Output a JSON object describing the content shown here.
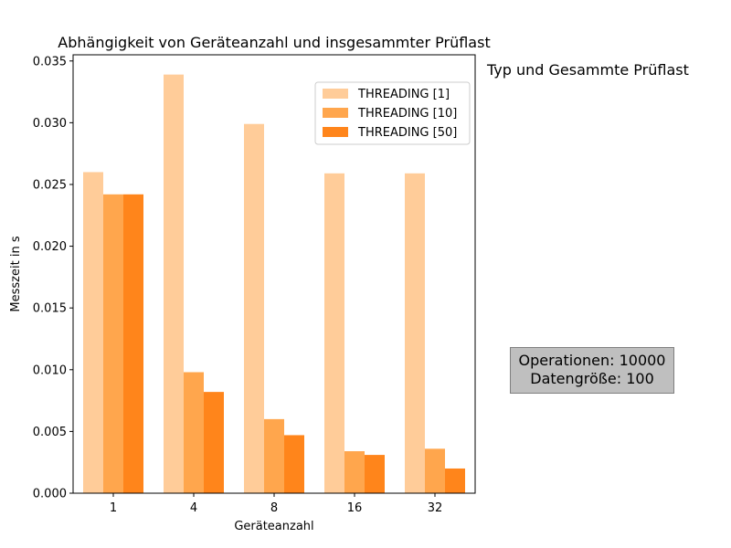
{
  "chart_data": {
    "type": "bar",
    "title": "Abhängigkeit von Geräteanzahl und insgesammter Prüflast",
    "xlabel": "Geräteanzahl",
    "ylabel": "Messzeit in s",
    "categories": [
      "1",
      "4",
      "8",
      "16",
      "32"
    ],
    "ylim": [
      0,
      0.0355
    ],
    "yticks": [
      "0.000",
      "0.005",
      "0.010",
      "0.015",
      "0.020",
      "0.025",
      "0.030",
      "0.035"
    ],
    "legend_position": "top-right",
    "series": [
      {
        "name": "THREADING [1]",
        "color": "#ffcc99",
        "values": [
          0.026,
          0.0339,
          0.0299,
          0.0259,
          0.0259
        ]
      },
      {
        "name": "THREADING [10]",
        "color": "#ffa64d",
        "values": [
          0.0242,
          0.0098,
          0.006,
          0.0034,
          0.0036
        ]
      },
      {
        "name": "THREADING [50]",
        "color": "#ff851b",
        "values": [
          0.0242,
          0.0082,
          0.0047,
          0.0031,
          0.002
        ]
      }
    ]
  },
  "side_title": "Typ und Gesammte Prüflast",
  "info_box": {
    "line1": "Operationen: 10000",
    "line2": "Datengröße: 100"
  }
}
